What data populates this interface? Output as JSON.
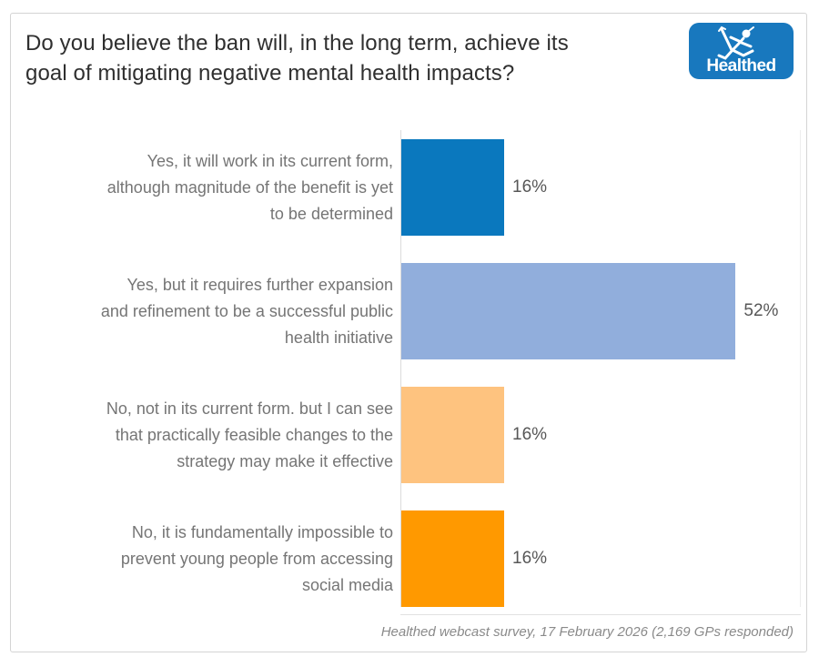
{
  "header": {
    "title": "Do you believe the ban will, in the long term, achieve its\ngoal of mitigating negative mental health impacts?",
    "logo_text": "Healthed"
  },
  "chart_data": {
    "type": "bar",
    "orientation": "horizontal",
    "title": "Do you believe the ban will, in the long term, achieve its goal of mitigating negative mental health impacts?",
    "categories": [
      "Yes, it will work in its current form,\nalthough magnitude of the benefit is yet\nto be determined",
      "Yes, but it requires further expansion\nand refinement to be a successful public\nhealth initiative",
      "No, not in its current form. but I can see\nthat practically feasible changes to the\nstrategy may make it effective",
      "No, it is fundamentally impossible to\nprevent young people from accessing\nsocial media"
    ],
    "values": [
      16,
      52,
      16,
      16
    ],
    "value_labels": [
      "16%",
      "52%",
      "16%",
      "16%"
    ],
    "bar_colors": [
      "#0A78BE",
      "#91AEDC",
      "#FEC37F",
      "#FF9900"
    ],
    "xlim": [
      0,
      61
    ],
    "xlabel": "",
    "ylabel": "",
    "grid": false,
    "legend": false,
    "source_note": "Healthed webcast survey, 17 February 2026 (2,169 GPs responded)"
  },
  "footer": {
    "caption": "Healthed webcast survey, 17 February 2026 (2,169 GPs responded)"
  },
  "colors": {
    "logo_blue": "#1878BE",
    "title_color": "#2F2F2F",
    "label_gray": "#757575",
    "value_gray": "#575757",
    "border_gray": "#D4D4D4"
  }
}
